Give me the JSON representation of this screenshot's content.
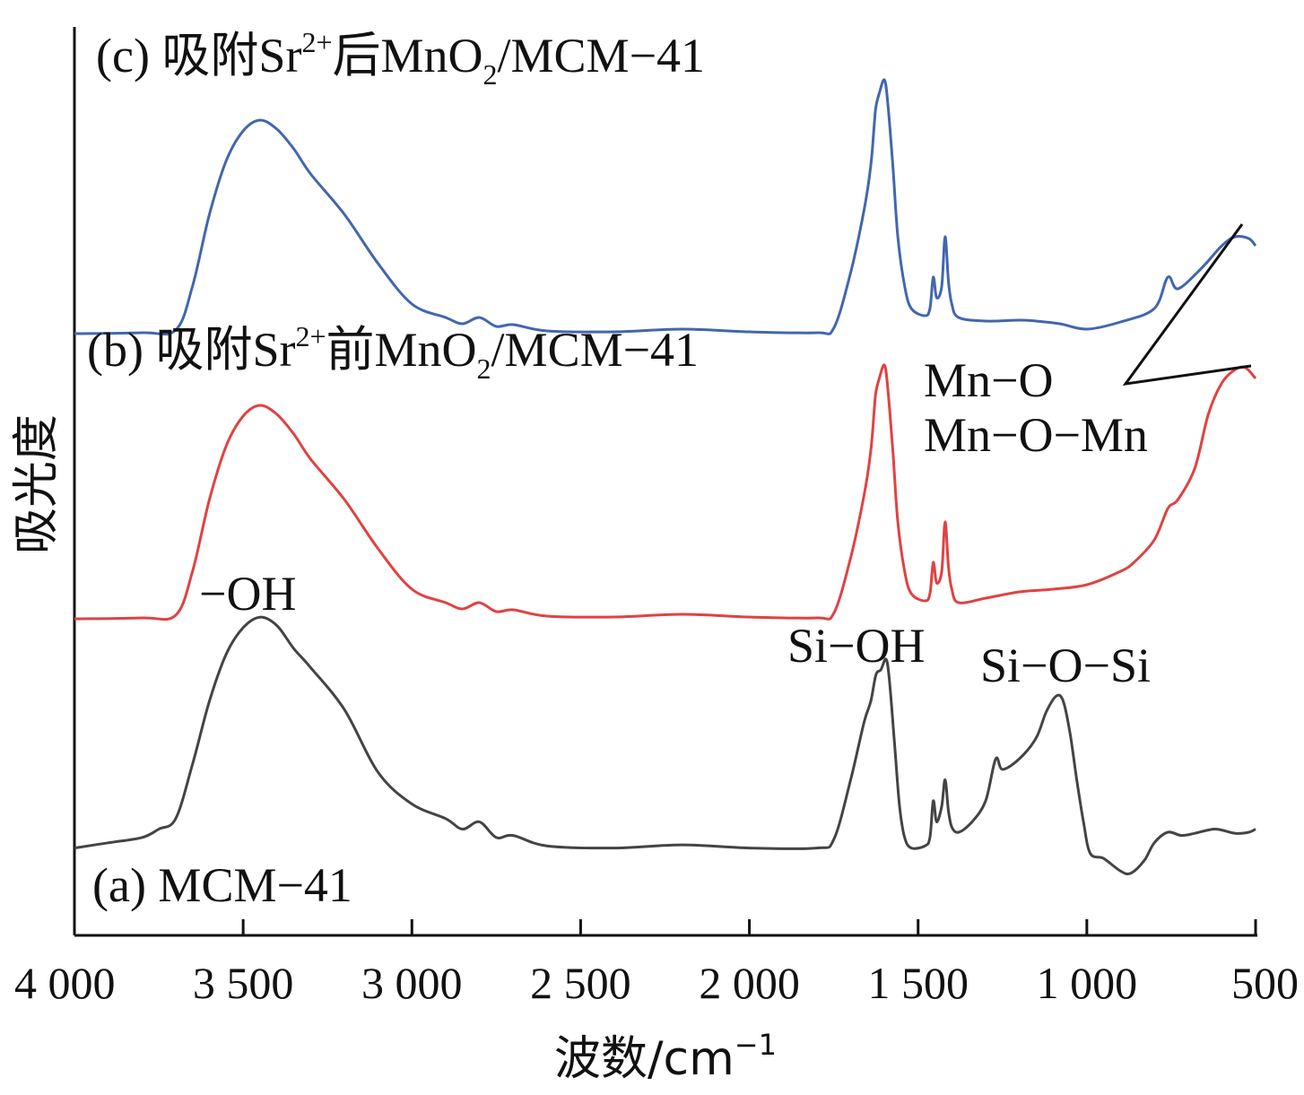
{
  "chart_data": {
    "type": "line",
    "title": "",
    "xlabel": "波数/cm",
    "xlabel_superscript": "−1",
    "ylabel": "吸光度",
    "xlim": [
      4000,
      500
    ],
    "x_reversed": true,
    "x_ticks": [
      4000,
      3500,
      3000,
      2500,
      2000,
      1500,
      1000,
      500
    ],
    "x_tick_labels": [
      "4 000",
      "3 500",
      "3 000",
      "2 500",
      "2 000",
      "1 500",
      "1 000",
      "500"
    ],
    "y_ticks_shown": false,
    "grid": false,
    "legend": "none",
    "series": [
      {
        "id": "c",
        "label_prefix": "(c) 吸附Sr",
        "label_sup": "2+",
        "label_mid": "后MnO",
        "label_sub": "2",
        "label_suffix": "/MCM−41",
        "color": "#4366ad",
        "points": [
          [
            4000,
            0.22
          ],
          [
            3800,
            0.23
          ],
          [
            3700,
            0.26
          ],
          [
            3650,
            0.75
          ],
          [
            3600,
            1.55
          ],
          [
            3550,
            2.15
          ],
          [
            3500,
            2.48
          ],
          [
            3450,
            2.6
          ],
          [
            3400,
            2.5
          ],
          [
            3350,
            2.28
          ],
          [
            3300,
            2.0
          ],
          [
            3200,
            1.55
          ],
          [
            3100,
            1.0
          ],
          [
            3000,
            0.55
          ],
          [
            2900,
            0.4
          ],
          [
            2850,
            0.33
          ],
          [
            2800,
            0.4
          ],
          [
            2750,
            0.3
          ],
          [
            2700,
            0.32
          ],
          [
            2600,
            0.25
          ],
          [
            2400,
            0.24
          ],
          [
            2200,
            0.27
          ],
          [
            2000,
            0.24
          ],
          [
            1800,
            0.23
          ],
          [
            1750,
            0.28
          ],
          [
            1700,
            0.9
          ],
          [
            1660,
            1.6
          ],
          [
            1640,
            2.1
          ],
          [
            1630,
            2.55
          ],
          [
            1625,
            2.75
          ],
          [
            1615,
            2.9
          ],
          [
            1600,
            3.05
          ],
          [
            1590,
            2.8
          ],
          [
            1575,
            2.1
          ],
          [
            1560,
            1.3
          ],
          [
            1540,
            0.75
          ],
          [
            1520,
            0.5
          ],
          [
            1480,
            0.42
          ],
          [
            1465,
            0.5
          ],
          [
            1455,
            0.85
          ],
          [
            1445,
            0.62
          ],
          [
            1430,
            0.75
          ],
          [
            1420,
            1.3
          ],
          [
            1410,
            0.8
          ],
          [
            1400,
            0.55
          ],
          [
            1380,
            0.4
          ],
          [
            1300,
            0.36
          ],
          [
            1200,
            0.37
          ],
          [
            1150,
            0.36
          ],
          [
            1080,
            0.33
          ],
          [
            1000,
            0.27
          ],
          [
            900,
            0.35
          ],
          [
            800,
            0.5
          ],
          [
            760,
            0.85
          ],
          [
            730,
            0.72
          ],
          [
            660,
            0.95
          ],
          [
            600,
            1.2
          ],
          [
            560,
            1.3
          ],
          [
            520,
            1.28
          ],
          [
            500,
            1.2
          ]
        ]
      },
      {
        "id": "b",
        "label_prefix": "(b) 吸附Sr",
        "label_sup": "2+",
        "label_mid": "前MnO",
        "label_sub": "2",
        "label_suffix": "/MCM−41",
        "color": "#e04242",
        "points": [
          [
            4000,
            0.22
          ],
          [
            3800,
            0.23
          ],
          [
            3700,
            0.26
          ],
          [
            3650,
            0.75
          ],
          [
            3600,
            1.55
          ],
          [
            3550,
            2.15
          ],
          [
            3500,
            2.48
          ],
          [
            3450,
            2.6
          ],
          [
            3400,
            2.5
          ],
          [
            3350,
            2.28
          ],
          [
            3300,
            2.0
          ],
          [
            3200,
            1.55
          ],
          [
            3100,
            1.0
          ],
          [
            3000,
            0.55
          ],
          [
            2900,
            0.4
          ],
          [
            2850,
            0.33
          ],
          [
            2800,
            0.4
          ],
          [
            2750,
            0.3
          ],
          [
            2700,
            0.32
          ],
          [
            2600,
            0.25
          ],
          [
            2400,
            0.24
          ],
          [
            2200,
            0.27
          ],
          [
            2000,
            0.24
          ],
          [
            1800,
            0.23
          ],
          [
            1750,
            0.28
          ],
          [
            1700,
            0.9
          ],
          [
            1660,
            1.6
          ],
          [
            1640,
            2.1
          ],
          [
            1630,
            2.55
          ],
          [
            1625,
            2.75
          ],
          [
            1615,
            2.9
          ],
          [
            1600,
            3.05
          ],
          [
            1590,
            2.8
          ],
          [
            1575,
            2.1
          ],
          [
            1560,
            1.3
          ],
          [
            1540,
            0.75
          ],
          [
            1520,
            0.5
          ],
          [
            1480,
            0.42
          ],
          [
            1465,
            0.5
          ],
          [
            1455,
            0.85
          ],
          [
            1445,
            0.62
          ],
          [
            1430,
            0.75
          ],
          [
            1420,
            1.3
          ],
          [
            1410,
            0.8
          ],
          [
            1400,
            0.55
          ],
          [
            1380,
            0.4
          ],
          [
            1300,
            0.45
          ],
          [
            1200,
            0.52
          ],
          [
            1100,
            0.55
          ],
          [
            1000,
            0.6
          ],
          [
            900,
            0.75
          ],
          [
            860,
            0.85
          ],
          [
            800,
            1.1
          ],
          [
            760,
            1.45
          ],
          [
            730,
            1.55
          ],
          [
            680,
            1.9
          ],
          [
            640,
            2.5
          ],
          [
            600,
            2.85
          ],
          [
            560,
            3.0
          ],
          [
            530,
            3.02
          ],
          [
            500,
            2.9
          ]
        ]
      },
      {
        "id": "a",
        "label_prefix": "(a) MCM−41",
        "label_sup": "",
        "label_mid": "",
        "label_sub": "",
        "label_suffix": "",
        "color": "#444444",
        "points": [
          [
            4000,
            0.2
          ],
          [
            3900,
            0.25
          ],
          [
            3800,
            0.3
          ],
          [
            3750,
            0.38
          ],
          [
            3700,
            0.48
          ],
          [
            3650,
            1.0
          ],
          [
            3600,
            1.6
          ],
          [
            3550,
            2.05
          ],
          [
            3500,
            2.3
          ],
          [
            3450,
            2.4
          ],
          [
            3400,
            2.32
          ],
          [
            3350,
            2.1
          ],
          [
            3300,
            1.92
          ],
          [
            3200,
            1.52
          ],
          [
            3100,
            0.92
          ],
          [
            3000,
            0.62
          ],
          [
            2900,
            0.48
          ],
          [
            2850,
            0.38
          ],
          [
            2800,
            0.45
          ],
          [
            2750,
            0.3
          ],
          [
            2700,
            0.32
          ],
          [
            2600,
            0.22
          ],
          [
            2400,
            0.2
          ],
          [
            2200,
            0.23
          ],
          [
            2000,
            0.2
          ],
          [
            1800,
            0.2
          ],
          [
            1750,
            0.28
          ],
          [
            1700,
            0.85
          ],
          [
            1660,
            1.4
          ],
          [
            1640,
            1.6
          ],
          [
            1625,
            1.85
          ],
          [
            1610,
            1.9
          ],
          [
            1595,
            2.0
          ],
          [
            1585,
            1.8
          ],
          [
            1570,
            1.2
          ],
          [
            1555,
            0.6
          ],
          [
            1540,
            0.3
          ],
          [
            1520,
            0.2
          ],
          [
            1480,
            0.22
          ],
          [
            1465,
            0.3
          ],
          [
            1455,
            0.65
          ],
          [
            1445,
            0.45
          ],
          [
            1430,
            0.6
          ],
          [
            1420,
            0.85
          ],
          [
            1410,
            0.55
          ],
          [
            1400,
            0.4
          ],
          [
            1380,
            0.35
          ],
          [
            1340,
            0.45
          ],
          [
            1300,
            0.65
          ],
          [
            1270,
            1.05
          ],
          [
            1250,
            0.95
          ],
          [
            1200,
            1.05
          ],
          [
            1150,
            1.25
          ],
          [
            1120,
            1.5
          ],
          [
            1090,
            1.65
          ],
          [
            1070,
            1.6
          ],
          [
            1050,
            1.3
          ],
          [
            1030,
            0.85
          ],
          [
            1010,
            0.45
          ],
          [
            990,
            0.15
          ],
          [
            950,
            0.1
          ],
          [
            900,
            -0.02
          ],
          [
            870,
            -0.04
          ],
          [
            830,
            0.08
          ],
          [
            800,
            0.25
          ],
          [
            760,
            0.35
          ],
          [
            720,
            0.32
          ],
          [
            680,
            0.34
          ],
          [
            620,
            0.38
          ],
          [
            560,
            0.34
          ],
          [
            520,
            0.35
          ],
          [
            500,
            0.38
          ]
        ]
      }
    ],
    "annotations": [
      {
        "id": "oh",
        "text": "−OH"
      },
      {
        "id": "sioh",
        "text": "Si−OH"
      },
      {
        "id": "siosi",
        "text": "Si−O−Si"
      },
      {
        "id": "mno1",
        "text": "Mn−O"
      },
      {
        "id": "mno2",
        "text": "Mn−O−Mn"
      }
    ]
  }
}
